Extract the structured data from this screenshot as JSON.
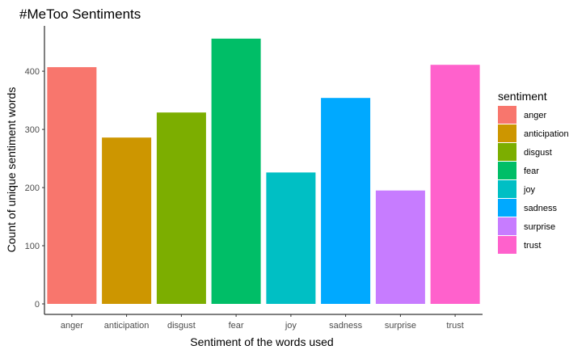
{
  "chart_data": {
    "type": "bar",
    "title": "#MeToo Sentiments",
    "xlabel": "Sentiment of the words used",
    "ylabel": "Count of unique sentiment words",
    "categories": [
      "anger",
      "anticipation",
      "disgust",
      "fear",
      "joy",
      "sadness",
      "surprise",
      "trust"
    ],
    "values": [
      407,
      286,
      329,
      456,
      226,
      354,
      195,
      411
    ],
    "colors": [
      "#F8766D",
      "#CD9600",
      "#7CAE00",
      "#00BE67",
      "#00BFC4",
      "#00A9FF",
      "#C77CFF",
      "#FF61CC"
    ],
    "ylim": [
      0,
      478
    ],
    "yticks": [
      0,
      100,
      200,
      300,
      400
    ],
    "grid": false,
    "legend": {
      "title": "sentiment",
      "position": "right",
      "entries": [
        "anger",
        "anticipation",
        "disgust",
        "fear",
        "joy",
        "sadness",
        "surprise",
        "trust"
      ]
    }
  }
}
